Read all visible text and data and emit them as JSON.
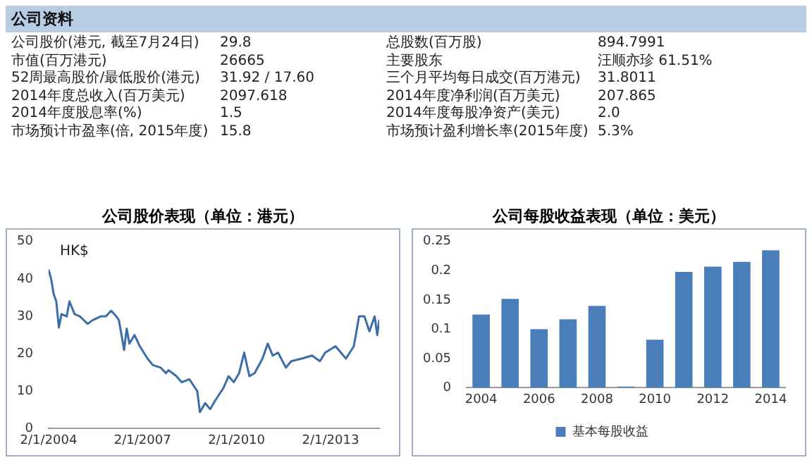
{
  "chart_data": [
    {
      "type": "other",
      "title": "公司资料",
      "annotations": [
        "公司股价(港元, 截至7月24日)",
        "29.8",
        "总股数(百万股)",
        "894.7991",
        "市值(百万港元)",
        "26665",
        "主要股东",
        "汪顺亦珍 61.51%",
        "52周最高股价/最低股价(港元)",
        "31.92 / 17.60",
        "三个月平均每日成交(百万港元)",
        "31.8011",
        "2014年度总收入(百万美元)",
        "2097.618",
        "2014年度净利润(百万美元)",
        "207.865",
        "2014年度股息率(%)",
        "1.5",
        "2014年度每股净资产(美元)",
        "2.0",
        "市场预计市盈率(倍, 2015年度)",
        "15.8",
        "市场预计盈利增长率(2015年度)",
        "5.3%"
      ]
    },
    {
      "type": "line",
      "title": "公司股价表现（单位：港元）",
      "annotations": [
        "HK$"
      ],
      "x": [
        "2004-01-02",
        "2004-02",
        "2004-03",
        "2004-04",
        "2004-05",
        "2004-06",
        "2004-08",
        "2004-09",
        "2004-11",
        "2005-01",
        "2005-04",
        "2005-06",
        "2005-09",
        "2005-11",
        "2006-01",
        "2006-03",
        "2006-04",
        "2006-06",
        "2006-07",
        "2006-08",
        "2006-10",
        "2006-12",
        "2007-03",
        "2007-05",
        "2007-08",
        "2007-10",
        "2007-11",
        "2008-02",
        "2008-04",
        "2008-07",
        "2008-10",
        "2008-11",
        "2009-01",
        "2009-03",
        "2009-05",
        "2009-08",
        "2009-10",
        "2009-12",
        "2010-02",
        "2010-04",
        "2010-06",
        "2010-08",
        "2010-11",
        "2011-01",
        "2011-03",
        "2011-05",
        "2011-08",
        "2011-10",
        "2012-02",
        "2012-06",
        "2012-09",
        "2012-11",
        "2013-03",
        "2013-07",
        "2013-10",
        "2013-12",
        "2014-02",
        "2014-04",
        "2014-06",
        "2014-07",
        "2014-07-24"
      ],
      "series": [
        {
          "color": "#3b6ea8",
          "values": [
            42.5,
            40,
            36,
            34,
            27,
            30.6,
            30,
            34,
            30.6,
            30,
            28,
            29,
            30,
            30,
            31.5,
            30,
            29,
            21,
            26.7,
            22.7,
            25,
            22,
            18.7,
            17,
            16.3,
            14.8,
            15.6,
            14,
            12.4,
            13.2,
            10,
            4.4,
            6.8,
            5.2,
            7.6,
            10.8,
            14,
            12.4,
            14.8,
            20.3,
            14,
            14.8,
            18.7,
            22.7,
            19.5,
            20.3,
            16.3,
            18,
            18.7,
            19.5,
            18,
            20.3,
            22,
            18.7,
            22,
            30,
            30,
            26,
            30,
            25,
            29
          ]
        }
      ],
      "xlim": [
        "2004-01-02",
        "2014-07-24"
      ],
      "xticks": [
        {
          "value": "2004-01-02",
          "label": "2/1/2004"
        },
        {
          "value": "2007-01-02",
          "label": "2/1/2007"
        },
        {
          "value": "2010-01-02",
          "label": "2/1/2010"
        },
        {
          "value": "2013-01-02",
          "label": "2/1/2013"
        }
      ],
      "ylim": [
        0,
        50
      ],
      "yticks": [
        0,
        10,
        20,
        30,
        40,
        50
      ]
    },
    {
      "type": "bar",
      "title": "公司每股收益表现（单位：美元）",
      "legend": "bottom",
      "categories": [
        "2004",
        null,
        "2006",
        null,
        "2008",
        null,
        "2010",
        null,
        "2012",
        null,
        "2014"
      ],
      "series": [
        {
          "name": "基本每股收益",
          "color": "#4a7ebb",
          "values": [
            0.125,
            0.152,
            0.1,
            0.117,
            0.14,
            0.002,
            0.082,
            0.198,
            0.207,
            0.215,
            0.235
          ]
        }
      ],
      "ylim": [
        0,
        0.25
      ],
      "yticks": [
        0,
        0.05,
        0.1,
        0.15,
        0.2,
        0.25
      ]
    }
  ]
}
